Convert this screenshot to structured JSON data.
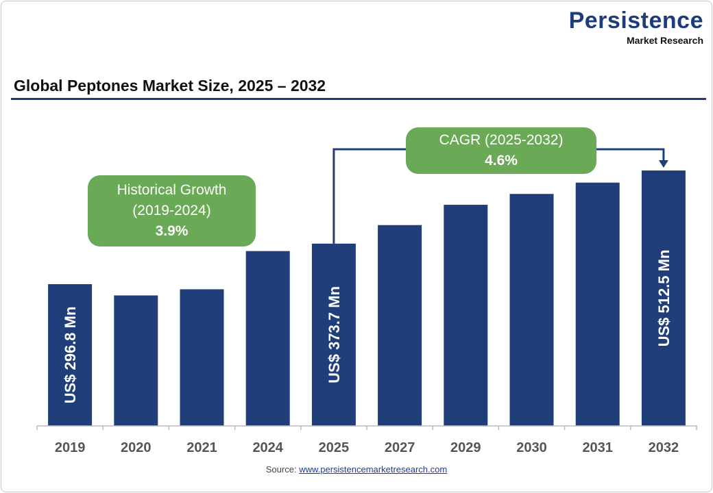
{
  "logo": {
    "line1": "Persistence",
    "line2": "Market Research"
  },
  "title": "Global Peptones Market Size, 2025 – 2032",
  "chart_data": {
    "type": "bar",
    "title": "Global Peptones Market Size, 2025 – 2032",
    "categories": [
      "2019",
      "2020",
      "2021",
      "2024",
      "2025",
      "2027",
      "2029",
      "2030",
      "2031",
      "2032"
    ],
    "values": [
      296.8,
      275.4,
      287.1,
      359.6,
      373.7,
      408.9,
      447.4,
      468.0,
      489.5,
      512.5
    ],
    "unit": "US$ Mn",
    "data_labels": {
      "2019": "US$ 296.8 Mn",
      "2025": "US$ 373.7 Mn",
      "2032": "US$ 512.5 Mn"
    },
    "bar_color": "#203f7a",
    "grid": false,
    "annotations": [
      {
        "label": "Historical Growth",
        "period": "(2019-2024)",
        "value": "3.9%"
      },
      {
        "label": "CAGR (2025-2032)",
        "value": "4.6%"
      }
    ]
  },
  "annotation_color": "#6aa955",
  "source": {
    "label": "Source: ",
    "link": "www.persistencemarketresearch.com"
  }
}
